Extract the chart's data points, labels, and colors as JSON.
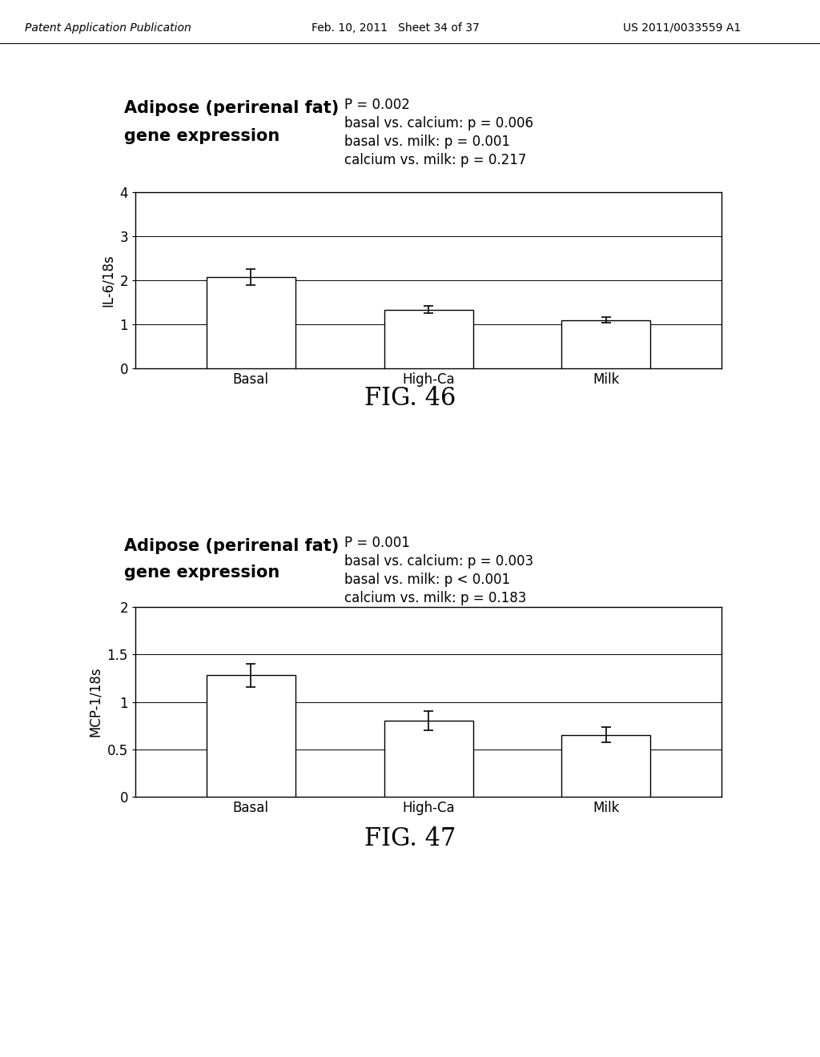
{
  "fig46": {
    "title_line1": "Adipose (perirenal fat)",
    "title_line2": "gene expression",
    "stats_line1": "P = 0.002",
    "stats_line2": "basal vs. calcium: p = 0.006",
    "stats_line3": "basal vs. milk: p = 0.001",
    "stats_line4": "calcium vs. milk: p = 0.217",
    "categories": [
      "Basal",
      "High-Ca",
      "Milk"
    ],
    "values": [
      2.08,
      1.33,
      1.1
    ],
    "errors": [
      0.18,
      0.08,
      0.07
    ],
    "ylabel": "IL-6/18s",
    "ylim": [
      0,
      4
    ],
    "yticks": [
      0,
      1,
      2,
      3,
      4
    ],
    "fig_label": "FIG. 46"
  },
  "fig47": {
    "title_line1": "Adipose (perirenal fat)",
    "title_line2": "gene expression",
    "stats_line1": "P = 0.001",
    "stats_line2": "basal vs. calcium: p = 0.003",
    "stats_line3": "basal vs. milk: p < 0.001",
    "stats_line4": "calcium vs. milk: p = 0.183",
    "categories": [
      "Basal",
      "High-Ca",
      "Milk"
    ],
    "values": [
      1.28,
      0.8,
      0.65
    ],
    "errors": [
      0.12,
      0.1,
      0.08
    ],
    "ylabel": "MCP-1/18s",
    "ylim": [
      0,
      2
    ],
    "yticks": [
      0,
      0.5,
      1,
      1.5,
      2
    ],
    "fig_label": "FIG. 47"
  },
  "header_left": "Patent Application Publication",
  "header_mid": "Feb. 10, 2011   Sheet 34 of 37",
  "header_right": "US 2011/0033559 A1",
  "bar_color": "#ffffff",
  "bar_edgecolor": "#000000",
  "background_color": "#ffffff",
  "bar_width": 0.5,
  "title_fontsize": 15,
  "stats_fontsize": 12,
  "ylabel_fontsize": 12,
  "tick_fontsize": 12,
  "fig_label_fontsize": 22
}
